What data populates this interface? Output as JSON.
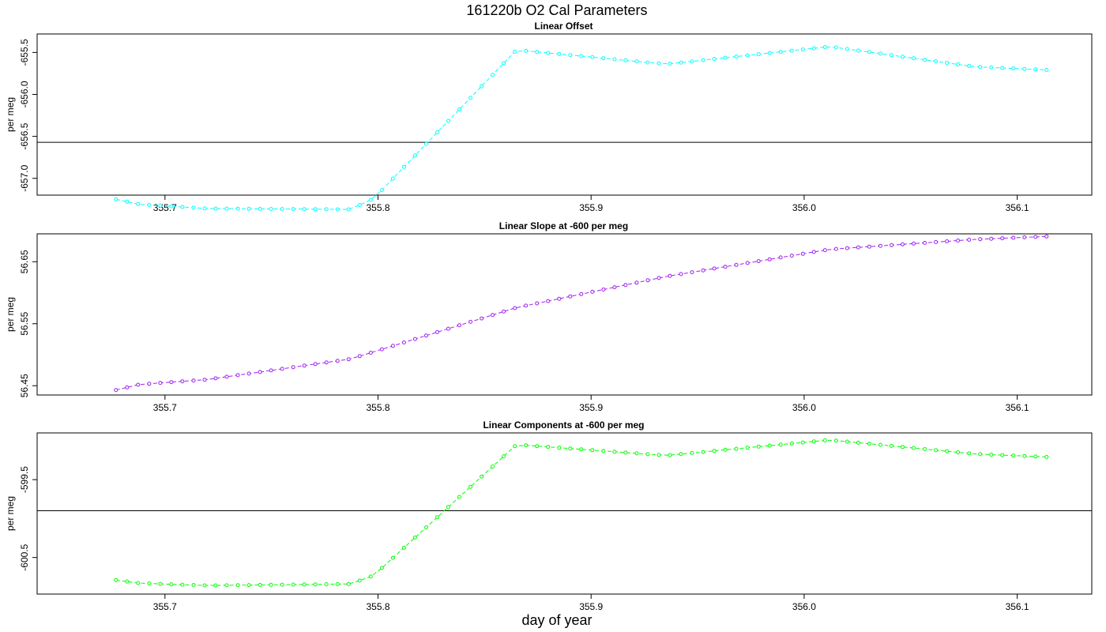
{
  "figure": {
    "title": "161220b   O2 Cal Parameters",
    "xlabel": "day of year"
  },
  "chart_data": [
    {
      "type": "line",
      "title": "Linear Offset",
      "ylabel": "per meg",
      "color": "#00FFFF",
      "xlim": [
        355.64,
        356.135
      ],
      "ylim": [
        -657.2,
        -655.28
      ],
      "xticks": [
        355.7,
        355.8,
        355.9,
        356.0,
        356.1
      ],
      "xtick_labels": [
        "355.7",
        "355.8",
        "355.9",
        "356.0",
        "356.1"
      ],
      "yticks": [
        -657.0,
        -656.5,
        -656.0,
        -655.5
      ],
      "ytick_labels": [
        "-657.0",
        "-656.5",
        "-656.0",
        "-655.5"
      ],
      "hline": -656.57,
      "knots": [
        [
          355.677,
          -657.25
        ],
        [
          355.688,
          -657.31
        ],
        [
          355.72,
          -657.36
        ],
        [
          355.787,
          -657.37
        ],
        [
          355.798,
          -657.24
        ],
        [
          355.865,
          -655.47
        ],
        [
          355.935,
          -655.64
        ],
        [
          356.012,
          -655.43
        ],
        [
          356.08,
          -655.67
        ],
        [
          356.115,
          -655.71
        ]
      ]
    },
    {
      "type": "line",
      "title": "Linear Slope at -600 per meg",
      "ylabel": "per meg",
      "color": "#A020F0",
      "xlim": [
        355.64,
        356.135
      ],
      "ylim": [
        56.435,
        56.695
      ],
      "xticks": [
        355.7,
        355.8,
        355.9,
        356.0,
        356.1
      ],
      "xtick_labels": [
        "355.7",
        "355.8",
        "355.9",
        "356.0",
        "356.1"
      ],
      "yticks": [
        56.45,
        56.55,
        56.65
      ],
      "ytick_labels": [
        "56.45",
        "56.55",
        "56.65"
      ],
      "knots": [
        [
          355.677,
          56.443
        ],
        [
          355.688,
          56.452
        ],
        [
          355.72,
          56.46
        ],
        [
          355.787,
          56.493
        ],
        [
          355.865,
          56.576
        ],
        [
          355.935,
          56.626
        ],
        [
          356.012,
          56.67
        ],
        [
          356.08,
          56.686
        ],
        [
          356.115,
          56.691
        ]
      ]
    },
    {
      "type": "line",
      "title": "Linear Components at -600 per meg",
      "ylabel": "per meg",
      "color": "#00FF00",
      "xlim": [
        355.64,
        356.135
      ],
      "ylim": [
        -600.97,
        -598.9
      ],
      "xticks": [
        355.7,
        355.8,
        355.9,
        356.0,
        356.1
      ],
      "xtick_labels": [
        "355.7",
        "355.8",
        "355.9",
        "356.0",
        "356.1"
      ],
      "yticks": [
        -600.5,
        -599.5
      ],
      "ytick_labels": [
        "-600.5",
        "-599.5"
      ],
      "hline": -599.9,
      "knots": [
        [
          355.677,
          -600.79
        ],
        [
          355.688,
          -600.83
        ],
        [
          355.72,
          -600.86
        ],
        [
          355.787,
          -600.84
        ],
        [
          355.798,
          -600.73
        ],
        [
          355.865,
          -599.05
        ],
        [
          355.935,
          -599.19
        ],
        [
          356.012,
          -598.99
        ],
        [
          356.08,
          -599.17
        ],
        [
          356.115,
          -599.21
        ]
      ]
    }
  ]
}
